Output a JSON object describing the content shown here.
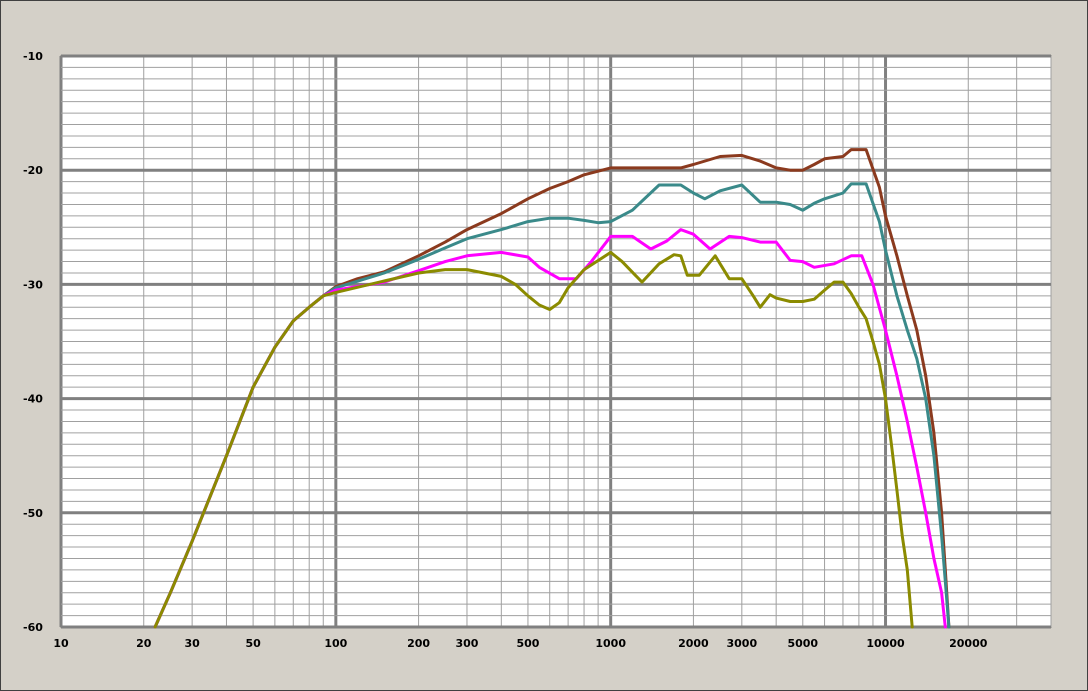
{
  "chart_data": {
    "type": "line",
    "title": "",
    "xlabel": "",
    "ylabel": "",
    "x_scale": "log",
    "xlim": [
      10,
      40000
    ],
    "ylim": [
      -60,
      -10
    ],
    "grid": true,
    "legend": "none",
    "x_tick_labels": [
      10,
      20,
      30,
      50,
      100,
      200,
      300,
      500,
      1000,
      2000,
      3000,
      5000,
      10000,
      20000
    ],
    "y_tick_labels": [
      -10,
      -20,
      -30,
      -40,
      -50,
      -60
    ],
    "series": [
      {
        "color": "#8b3a1e",
        "points": [
          [
            22,
            -60
          ],
          [
            25,
            -57
          ],
          [
            30,
            -52.5
          ],
          [
            40,
            -45
          ],
          [
            50,
            -39
          ],
          [
            60,
            -35.5
          ],
          [
            70,
            -33.2
          ],
          [
            80,
            -32
          ],
          [
            90,
            -31
          ],
          [
            100,
            -30.2
          ],
          [
            120,
            -29.5
          ],
          [
            150,
            -28.9
          ],
          [
            200,
            -27.5
          ],
          [
            250,
            -26.3
          ],
          [
            300,
            -25.2
          ],
          [
            400,
            -23.8
          ],
          [
            500,
            -22.5
          ],
          [
            600,
            -21.6
          ],
          [
            700,
            -21
          ],
          [
            800,
            -20.4
          ],
          [
            1000,
            -19.8
          ],
          [
            1500,
            -19.8
          ],
          [
            1800,
            -19.8
          ],
          [
            2000,
            -19.5
          ],
          [
            2500,
            -18.8
          ],
          [
            3000,
            -18.7
          ],
          [
            3500,
            -19.2
          ],
          [
            4000,
            -19.8
          ],
          [
            4500,
            -20
          ],
          [
            5000,
            -20
          ],
          [
            5500,
            -19.5
          ],
          [
            6000,
            -19
          ],
          [
            7000,
            -18.8
          ],
          [
            7500,
            -18.2
          ],
          [
            8500,
            -18.2
          ],
          [
            9500,
            -21.5
          ],
          [
            10000,
            -24
          ],
          [
            11000,
            -27.5
          ],
          [
            12000,
            -31
          ],
          [
            13000,
            -34
          ],
          [
            14000,
            -38
          ],
          [
            15000,
            -43
          ],
          [
            16000,
            -50
          ],
          [
            16500,
            -55
          ],
          [
            17000,
            -60
          ]
        ]
      },
      {
        "color": "#3a8a8a",
        "points": [
          [
            22,
            -60
          ],
          [
            25,
            -57
          ],
          [
            30,
            -52.5
          ],
          [
            40,
            -45
          ],
          [
            50,
            -39
          ],
          [
            60,
            -35.5
          ],
          [
            70,
            -33.2
          ],
          [
            80,
            -32
          ],
          [
            90,
            -31
          ],
          [
            100,
            -30.3
          ],
          [
            150,
            -29
          ],
          [
            200,
            -27.8
          ],
          [
            250,
            -26.8
          ],
          [
            300,
            -26
          ],
          [
            400,
            -25.2
          ],
          [
            500,
            -24.5
          ],
          [
            600,
            -24.2
          ],
          [
            700,
            -24.2
          ],
          [
            800,
            -24.4
          ],
          [
            900,
            -24.6
          ],
          [
            1000,
            -24.5
          ],
          [
            1200,
            -23.5
          ],
          [
            1500,
            -21.3
          ],
          [
            1800,
            -21.3
          ],
          [
            2000,
            -22
          ],
          [
            2200,
            -22.5
          ],
          [
            2500,
            -21.8
          ],
          [
            3000,
            -21.3
          ],
          [
            3500,
            -22.8
          ],
          [
            4000,
            -22.8
          ],
          [
            4500,
            -23
          ],
          [
            5000,
            -23.5
          ],
          [
            5500,
            -22.9
          ],
          [
            6000,
            -22.5
          ],
          [
            7000,
            -22
          ],
          [
            7500,
            -21.2
          ],
          [
            8500,
            -21.2
          ],
          [
            9500,
            -24.5
          ],
          [
            10000,
            -27
          ],
          [
            11000,
            -31
          ],
          [
            12000,
            -34
          ],
          [
            13000,
            -36.5
          ],
          [
            14000,
            -40
          ],
          [
            15000,
            -45
          ],
          [
            16000,
            -52
          ],
          [
            16500,
            -56
          ],
          [
            17000,
            -60
          ]
        ]
      },
      {
        "color": "#ff00ff",
        "points": [
          [
            22,
            -60
          ],
          [
            25,
            -57
          ],
          [
            30,
            -52.5
          ],
          [
            40,
            -45
          ],
          [
            50,
            -39
          ],
          [
            60,
            -35.5
          ],
          [
            70,
            -33.2
          ],
          [
            80,
            -32
          ],
          [
            90,
            -31
          ],
          [
            100,
            -30.5
          ],
          [
            150,
            -29.8
          ],
          [
            200,
            -28.8
          ],
          [
            250,
            -28
          ],
          [
            300,
            -27.5
          ],
          [
            400,
            -27.2
          ],
          [
            500,
            -27.6
          ],
          [
            550,
            -28.5
          ],
          [
            650,
            -29.5
          ],
          [
            750,
            -29.5
          ],
          [
            850,
            -28
          ],
          [
            1000,
            -25.8
          ],
          [
            1200,
            -25.8
          ],
          [
            1400,
            -26.9
          ],
          [
            1600,
            -26.2
          ],
          [
            1800,
            -25.2
          ],
          [
            2000,
            -25.6
          ],
          [
            2300,
            -26.9
          ],
          [
            2700,
            -25.8
          ],
          [
            3000,
            -25.9
          ],
          [
            3500,
            -26.3
          ],
          [
            4000,
            -26.3
          ],
          [
            4500,
            -27.9
          ],
          [
            5000,
            -28
          ],
          [
            5500,
            -28.5
          ],
          [
            6500,
            -28.2
          ],
          [
            7500,
            -27.5
          ],
          [
            8200,
            -27.5
          ],
          [
            9000,
            -30
          ],
          [
            10000,
            -34
          ],
          [
            11000,
            -38
          ],
          [
            12000,
            -42
          ],
          [
            13000,
            -46
          ],
          [
            14000,
            -50
          ],
          [
            15000,
            -54
          ],
          [
            16000,
            -57
          ],
          [
            16500,
            -60
          ]
        ]
      },
      {
        "color": "#8b8b00",
        "points": [
          [
            22,
            -60
          ],
          [
            25,
            -57
          ],
          [
            30,
            -52.5
          ],
          [
            40,
            -45
          ],
          [
            50,
            -39
          ],
          [
            60,
            -35.5
          ],
          [
            70,
            -33.2
          ],
          [
            80,
            -32
          ],
          [
            90,
            -31
          ],
          [
            100,
            -30.7
          ],
          [
            150,
            -29.7
          ],
          [
            200,
            -29
          ],
          [
            250,
            -28.7
          ],
          [
            300,
            -28.7
          ],
          [
            400,
            -29.3
          ],
          [
            450,
            -30
          ],
          [
            500,
            -31
          ],
          [
            550,
            -31.8
          ],
          [
            600,
            -32.2
          ],
          [
            650,
            -31.6
          ],
          [
            700,
            -30.3
          ],
          [
            800,
            -28.7
          ],
          [
            1000,
            -27.2
          ],
          [
            1100,
            -28
          ],
          [
            1300,
            -29.8
          ],
          [
            1500,
            -28.2
          ],
          [
            1700,
            -27.4
          ],
          [
            1800,
            -27.5
          ],
          [
            1900,
            -29.2
          ],
          [
            2100,
            -29.2
          ],
          [
            2400,
            -27.5
          ],
          [
            2700,
            -29.5
          ],
          [
            3000,
            -29.5
          ],
          [
            3300,
            -31
          ],
          [
            3500,
            -32
          ],
          [
            3800,
            -30.9
          ],
          [
            4000,
            -31.2
          ],
          [
            4500,
            -31.5
          ],
          [
            5000,
            -31.5
          ],
          [
            5500,
            -31.3
          ],
          [
            6000,
            -30.5
          ],
          [
            6500,
            -29.8
          ],
          [
            7000,
            -29.8
          ],
          [
            7500,
            -30.8
          ],
          [
            8000,
            -32
          ],
          [
            8500,
            -33
          ],
          [
            9000,
            -35
          ],
          [
            9500,
            -37
          ],
          [
            10000,
            -40
          ],
          [
            10500,
            -44
          ],
          [
            11000,
            -48
          ],
          [
            11500,
            -52
          ],
          [
            12000,
            -55
          ],
          [
            12500,
            -60
          ]
        ]
      }
    ]
  }
}
